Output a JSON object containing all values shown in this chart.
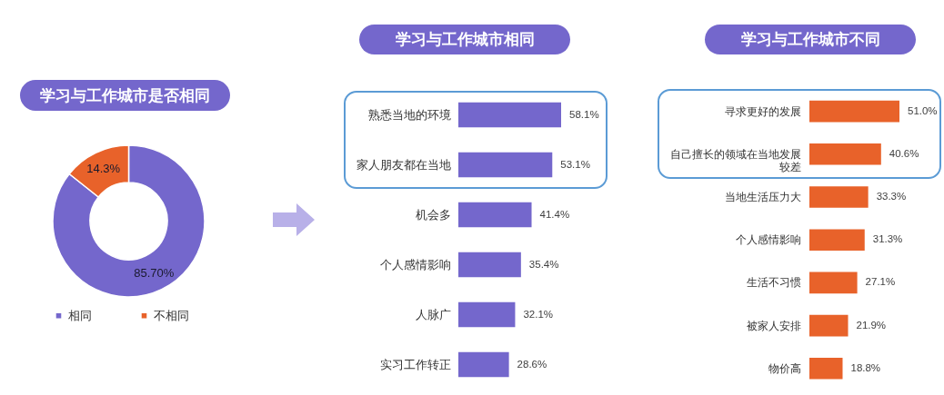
{
  "chart_data": [
    {
      "type": "donut",
      "title": "学习与工作城市是否相同",
      "categories": [
        "相同",
        "不相同"
      ],
      "values": [
        85.7,
        14.3
      ],
      "colors": [
        "#7467cc",
        "#e8622a"
      ],
      "value_labels": [
        "85.70%",
        "14.3%"
      ],
      "legend": "bottom"
    },
    {
      "type": "bar",
      "orientation": "horizontal",
      "title": "学习与工作城市相同",
      "categories": [
        "熟悉当地的环境",
        "家人朋友都在当地",
        "机会多",
        "个人感情影响",
        "人脉广",
        "实习工作转正"
      ],
      "values": [
        58.1,
        53.1,
        41.4,
        35.4,
        32.1,
        28.6
      ],
      "color": "#7467cc",
      "value_labels": [
        "58.1%",
        "53.1%",
        "41.4%",
        "35.4%",
        "32.1%",
        "28.6%"
      ]
    },
    {
      "type": "bar",
      "orientation": "horizontal",
      "title": "学习与工作城市不同",
      "categories": [
        "寻求更好的发展",
        "自己擅长的领域在当地发展较差",
        "当地生活压力大",
        "个人感情影响",
        "生活不习惯",
        "被家人安排",
        "物价高"
      ],
      "values": [
        51.0,
        40.6,
        33.3,
        31.3,
        27.1,
        21.9,
        18.8
      ],
      "color": "#e8622a",
      "value_labels": [
        "51.0%",
        "40.6%",
        "33.3%",
        "31.3%",
        "27.1%",
        "21.9%",
        "18.8%"
      ]
    }
  ]
}
